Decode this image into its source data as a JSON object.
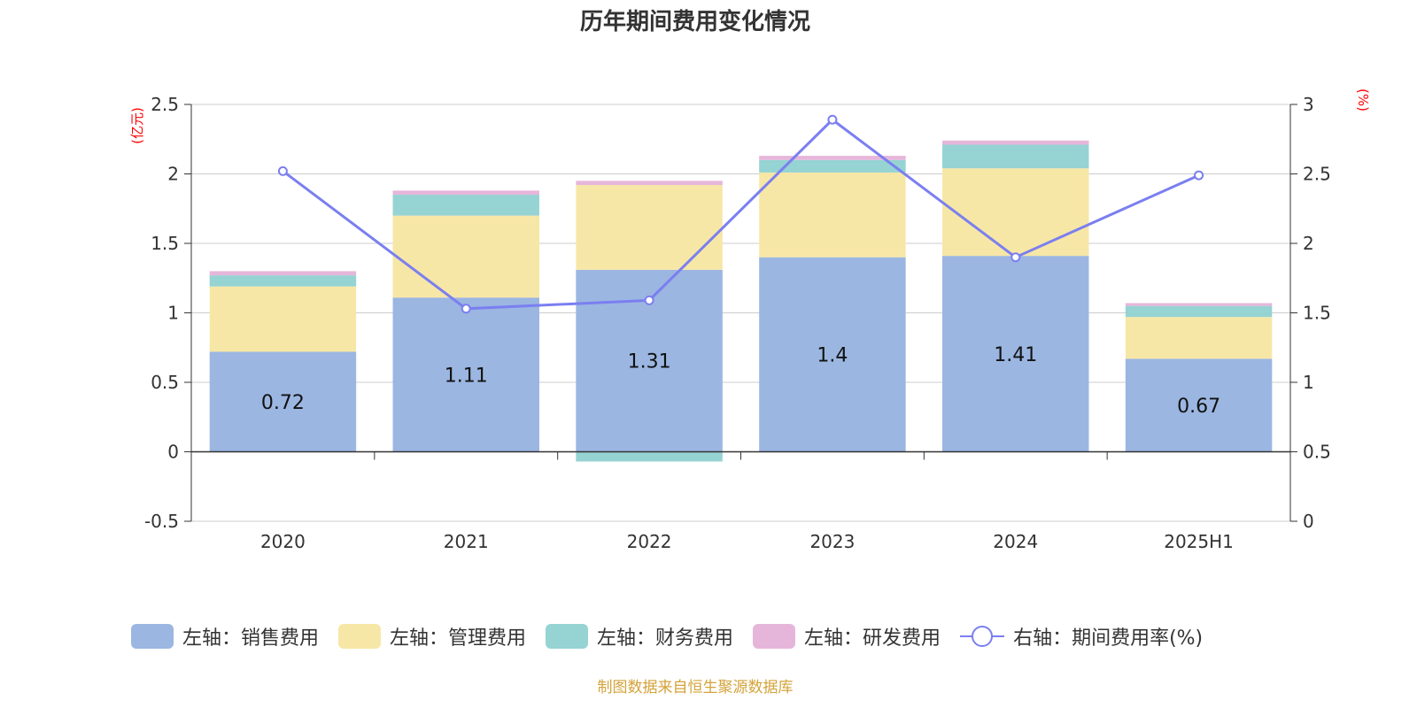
{
  "title": "历年期间费用变化情况",
  "source": "制图数据来自恒生聚源数据库",
  "colors": {
    "sales": "#9bb6e1",
    "admin": "#f7e7a6",
    "finance": "#96d3d3",
    "rnd": "#e6b6da",
    "rate": "#7b7ff0"
  },
  "legend": [
    {
      "label": "左轴：销售费用",
      "kind": "box",
      "color": "#9bb6e1"
    },
    {
      "label": "左轴：管理费用",
      "kind": "box",
      "color": "#f7e7a6"
    },
    {
      "label": "左轴：财务费用",
      "kind": "box",
      "color": "#96d3d3"
    },
    {
      "label": "左轴：研发费用",
      "kind": "box",
      "color": "#e6b6da"
    },
    {
      "label": "右轴：期间费用率(%)",
      "kind": "line",
      "color": "#7b7ff0"
    }
  ],
  "chart_data": {
    "type": "bar",
    "stacked": true,
    "title": "历年期间费用变化情况",
    "categories": [
      "2020",
      "2021",
      "2022",
      "2023",
      "2024",
      "2025H1"
    ],
    "y_left": {
      "unit": "(亿元)",
      "ylim": [
        -0.5,
        2.5
      ],
      "ticks": [
        "-0.5",
        "0",
        "0.5",
        "1",
        "1.5",
        "2",
        "2.5"
      ]
    },
    "y_right": {
      "unit": "(%)",
      "ylim": [
        0,
        3
      ],
      "ticks": [
        "0",
        "0.5",
        "1",
        "1.5",
        "2",
        "2.5",
        "3"
      ]
    },
    "grid": true,
    "legend_position": "bottom",
    "series": [
      {
        "name": "左轴：销售费用",
        "axis": "left",
        "type": "bar",
        "color": "#9bb6e1",
        "values": [
          0.72,
          1.11,
          1.31,
          1.4,
          1.41,
          0.67
        ],
        "labels": [
          "0.72",
          "1.11",
          "1.31",
          "1.4",
          "1.41",
          "0.67"
        ]
      },
      {
        "name": "左轴：管理费用",
        "axis": "left",
        "type": "bar",
        "color": "#f7e7a6",
        "values": [
          0.47,
          0.59,
          0.61,
          0.61,
          0.63,
          0.3
        ]
      },
      {
        "name": "左轴：财务费用",
        "axis": "left",
        "type": "bar",
        "color": "#96d3d3",
        "values": [
          0.08,
          0.15,
          -0.07,
          0.09,
          0.17,
          0.08
        ]
      },
      {
        "name": "左轴：研发费用",
        "axis": "left",
        "type": "bar",
        "color": "#e6b6da",
        "values": [
          0.03,
          0.03,
          0.03,
          0.03,
          0.03,
          0.02
        ]
      },
      {
        "name": "右轴：期间费用率(%)",
        "axis": "right",
        "type": "line",
        "color": "#7b7ff0",
        "values": [
          2.52,
          1.53,
          1.59,
          2.89,
          1.9,
          2.49
        ]
      }
    ]
  }
}
